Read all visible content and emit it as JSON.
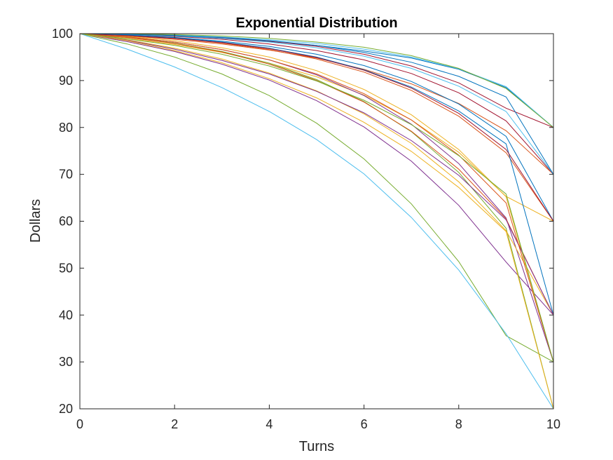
{
  "chart_data": {
    "type": "line",
    "title": "Exponential Distribution",
    "xlabel": "Turns",
    "ylabel": "Dollars",
    "xlim": [
      0,
      10
    ],
    "ylim": [
      20,
      100
    ],
    "x_ticks": [
      0,
      2,
      4,
      6,
      8,
      10
    ],
    "y_ticks": [
      20,
      30,
      40,
      50,
      60,
      70,
      80,
      90,
      100
    ],
    "grid": false,
    "legend": false,
    "x": [
      0,
      1,
      2,
      3,
      4,
      5,
      6,
      7,
      8,
      9,
      10
    ],
    "series": [
      {
        "color": "#0072BD",
        "values": [
          100,
          99.9,
          99.5,
          99,
          98.3,
          97.5,
          96.3,
          94.8,
          92.4,
          88.5,
          80
        ]
      },
      {
        "color": "#D95319",
        "values": [
          100,
          99.5,
          98.8,
          97.8,
          96.5,
          94.8,
          92.4,
          89.3,
          85.1,
          79.3,
          70
        ]
      },
      {
        "color": "#EDB120",
        "values": [
          100,
          99,
          97.7,
          96,
          93.7,
          90.8,
          86.9,
          81.6,
          74.7,
          65.3,
          60
        ]
      },
      {
        "color": "#7E2F8E",
        "values": [
          100,
          98.3,
          96.2,
          93.5,
          90.1,
          85.7,
          80.1,
          72.8,
          63.4,
          51.3,
          40
        ]
      },
      {
        "color": "#77AC30",
        "values": [
          100,
          97.8,
          95,
          91.4,
          86.8,
          80.9,
          73.3,
          63.7,
          51.4,
          35.6,
          30
        ]
      },
      {
        "color": "#4DBEEE",
        "values": [
          100,
          96.7,
          92.9,
          88.5,
          83.4,
          77.4,
          70.1,
          60.8,
          49.6,
          36,
          20
        ]
      },
      {
        "color": "#A2142F",
        "values": [
          100,
          99.8,
          99.4,
          98.8,
          97.8,
          96.4,
          94.4,
          91.5,
          87.4,
          81.4,
          70
        ]
      },
      {
        "color": "#0072BD",
        "values": [
          100,
          99.7,
          99.2,
          98.4,
          97.3,
          95.6,
          93.2,
          89.8,
          85,
          78.1,
          60
        ]
      },
      {
        "color": "#D95319",
        "values": [
          100,
          99.6,
          99,
          98,
          96.6,
          94.6,
          91.8,
          87.9,
          82.4,
          74.6,
          60
        ]
      },
      {
        "color": "#EDB120",
        "values": [
          100,
          99.4,
          98.5,
          97,
          95,
          92.1,
          88.1,
          82.7,
          75.3,
          65.2,
          30
        ]
      },
      {
        "color": "#7E2F8E",
        "values": [
          100,
          99.3,
          98.2,
          96.6,
          94.4,
          91.2,
          86.8,
          80.7,
          72.3,
          60.7,
          30
        ]
      },
      {
        "color": "#77AC30",
        "values": [
          100,
          99.2,
          98,
          96.2,
          93.7,
          90.2,
          85.5,
          79.1,
          70.4,
          58.5,
          20
        ]
      },
      {
        "color": "#4DBEEE",
        "values": [
          100,
          99.9,
          99.7,
          99.3,
          98.7,
          97.9,
          96.7,
          95,
          92.5,
          88.7,
          80
        ]
      },
      {
        "color": "#A2142F",
        "values": [
          100,
          99.85,
          99.6,
          99.1,
          98.4,
          97.3,
          95.6,
          93.1,
          89.5,
          84.1,
          80
        ]
      },
      {
        "color": "#0072BD",
        "values": [
          100,
          99.7,
          99.1,
          98.2,
          96.9,
          95,
          92.3,
          88.6,
          83.5,
          76.5,
          40
        ]
      },
      {
        "color": "#D95319",
        "values": [
          100,
          99.2,
          97.9,
          96.1,
          93.5,
          90,
          85.4,
          79.2,
          71.1,
          60.5,
          40
        ]
      },
      {
        "color": "#EDB120",
        "values": [
          100,
          98.7,
          96.9,
          94.6,
          91.6,
          87.8,
          82.9,
          76.6,
          68.4,
          58,
          40
        ]
      },
      {
        "color": "#7E2F8E",
        "values": [
          100,
          98.6,
          96.7,
          94.3,
          91.4,
          87.7,
          83.1,
          77.2,
          69.8,
          60.3,
          40
        ]
      },
      {
        "color": "#77AC30",
        "values": [
          100,
          99.95,
          99.8,
          99.5,
          99,
          98.2,
          97.1,
          95.3,
          92.6,
          88.3,
          80
        ]
      },
      {
        "color": "#4DBEEE",
        "values": [
          100,
          99.8,
          99.5,
          99,
          98.2,
          97,
          95.2,
          92.6,
          88.8,
          83.4,
          70
        ]
      },
      {
        "color": "#A2142F",
        "values": [
          100,
          99.6,
          99,
          98.1,
          96.8,
          94.9,
          92.2,
          88.4,
          83,
          75.3,
          60
        ]
      },
      {
        "color": "#0072BD",
        "values": [
          100,
          99.85,
          99.6,
          99.2,
          98.5,
          97.5,
          96,
          93.9,
          90.9,
          86.5,
          70
        ]
      },
      {
        "color": "#D95319",
        "values": [
          100,
          99.3,
          98.2,
          96.6,
          94.4,
          91.4,
          87.2,
          81.6,
          74.1,
          63.9,
          30
        ]
      },
      {
        "color": "#EDB120",
        "values": [
          100,
          98.5,
          96.4,
          93.8,
          90.4,
          86.3,
          81.1,
          74.9,
          67.2,
          57.8,
          20
        ]
      },
      {
        "color": "#77AC30",
        "values": [
          100,
          98.9,
          97.5,
          95.6,
          93.1,
          89.9,
          85.8,
          80.6,
          74,
          65.8,
          30
        ]
      }
    ]
  }
}
